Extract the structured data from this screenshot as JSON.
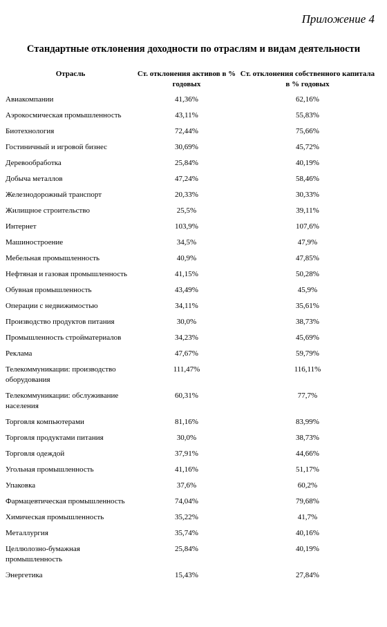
{
  "header": {
    "appendix": "Приложение 4",
    "title": "Стандартные отклонения доходности по отраслям и видам деятельности"
  },
  "table": {
    "header": [
      "Отрасль",
      "Ст. отклонения активов в % годовых",
      "Ст. отклонения собственного капитала в % годовых"
    ],
    "rows": [
      [
        "Авиакомпании",
        "41,36%",
        "62,16%"
      ],
      [
        "Аэрокосмическая промышленность",
        "43,11%",
        "55,83%"
      ],
      [
        "Биотехнология",
        "72,44%",
        "75,66%"
      ],
      [
        "Гостиничный и игровой  бизнес",
        "30,69%",
        "45,72%"
      ],
      [
        "Деревообработка",
        "25,84%",
        "40,19%"
      ],
      [
        "Добыча  металлов",
        "47,24%",
        "58,46%"
      ],
      [
        "Железнодорожный транспорт",
        "20,33%",
        "30,33%"
      ],
      [
        "Жилищное строительство",
        "25,5%",
        "39,11%"
      ],
      [
        "Интернет",
        "103,9%",
        "107,6%"
      ],
      [
        "Машиностроение",
        "34,5%",
        "47,9%"
      ],
      [
        "Мебельная промышленность",
        "40,9%",
        "47,85%"
      ],
      [
        "Нефтяная и газовая промышленность",
        "41,15%",
        "50,28%"
      ],
      [
        "Обувная промышленность",
        "43,49%",
        "45,9%"
      ],
      [
        "Операции с недвижимостью",
        "34,11%",
        "35,61%"
      ],
      [
        "Производство продуктов питания",
        "30,0%",
        "38,73%"
      ],
      [
        "Промышленность стройматериалов",
        "34,23%",
        "45,69%"
      ],
      [
        "Реклама",
        "47,67%",
        "59,79%"
      ],
      [
        "Телекоммуникации: производство оборудования",
        "111,47%",
        "116,11%"
      ],
      [
        "Телекоммуникации: обслуживание населения",
        "60,31%",
        "77,7%"
      ],
      [
        "Торговля компьютерами",
        "81,16%",
        "83,99%"
      ],
      [
        "Торговля продуктами питания",
        "30,0%",
        "38,73%"
      ],
      [
        "Торговля одеждой",
        "37,91%",
        "44,66%"
      ],
      [
        "Угольная промышленность",
        "41,16%",
        "51,17%"
      ],
      [
        "Упаковка",
        "37,6%",
        "60,2%"
      ],
      [
        "Фармацевтическая промышленность",
        "74,04%",
        "79,68%"
      ],
      [
        "Химическая промышленность",
        "35,22%",
        "41,7%"
      ],
      [
        "Металлургия",
        "35,74%",
        "40,16%"
      ],
      [
        "Целлюлозно-бумажная промышленность",
        "25,84%",
        "40,19%"
      ],
      [
        "Энергетика",
        "15,43%",
        "27,84%"
      ]
    ]
  }
}
